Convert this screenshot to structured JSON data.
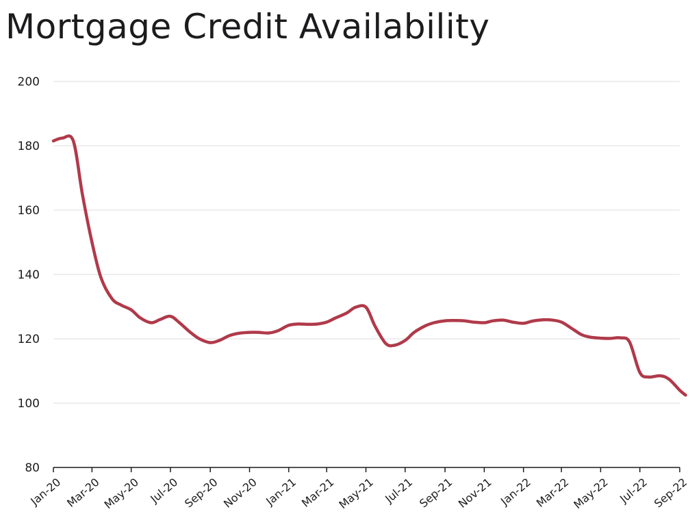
{
  "chart_data": {
    "type": "line",
    "title": "Mortgage Credit Availability",
    "xlabel": "",
    "ylabel": "",
    "ylim": [
      80,
      200
    ],
    "yticks": [
      80,
      100,
      120,
      140,
      160,
      180,
      200
    ],
    "grid": true,
    "legend": "none",
    "line_color": "#b03a4a",
    "x_tick_labels": [
      "Jan-20",
      "Mar-20",
      "May-20",
      "Jul-20",
      "Sep-20",
      "Nov-20",
      "Jan-21",
      "Mar-21",
      "May-21",
      "Jul-21",
      "Sep-21",
      "Nov-21",
      "Jan-22",
      "Mar-22",
      "May-22",
      "Jul-22",
      "Sep-22"
    ],
    "series": [
      {
        "values": [
          [
            "2020-01",
            181.5
          ],
          [
            "2020-01-15",
            182.4
          ],
          [
            "2020-02-01",
            181.5
          ],
          [
            "2020-02-15",
            165
          ],
          [
            "2020-03-01",
            150
          ],
          [
            "2020-03-15",
            139
          ],
          [
            "2020-04-01",
            132.5
          ],
          [
            "2020-04-15",
            130.5
          ],
          [
            "2020-05-01",
            129
          ],
          [
            "2020-05-15",
            126.5
          ],
          [
            "2020-06-01",
            125
          ],
          [
            "2020-06-15",
            126
          ],
          [
            "2020-07-01",
            127
          ],
          [
            "2020-07-15",
            125
          ],
          [
            "2020-08-01",
            122
          ],
          [
            "2020-08-15",
            120
          ],
          [
            "2020-09-01",
            118.8
          ],
          [
            "2020-09-15",
            119.5
          ],
          [
            "2020-10-01",
            121
          ],
          [
            "2020-10-15",
            121.7
          ],
          [
            "2020-11-01",
            122
          ],
          [
            "2020-11-15",
            122
          ],
          [
            "2020-12-01",
            121.8
          ],
          [
            "2020-12-15",
            122.5
          ],
          [
            "2021-01-01",
            124.2
          ],
          [
            "2021-01-15",
            124.6
          ],
          [
            "2021-02-01",
            124.5
          ],
          [
            "2021-02-15",
            124.6
          ],
          [
            "2021-03-01",
            125.2
          ],
          [
            "2021-03-15",
            126.5
          ],
          [
            "2021-04-01",
            128
          ],
          [
            "2021-04-15",
            129.8
          ],
          [
            "2021-05-01",
            129.8
          ],
          [
            "2021-05-15",
            124
          ],
          [
            "2021-06-01",
            118.5
          ],
          [
            "2021-06-15",
            118
          ],
          [
            "2021-07-01",
            119.5
          ],
          [
            "2021-07-15",
            122
          ],
          [
            "2021-08-01",
            124
          ],
          [
            "2021-08-15",
            125
          ],
          [
            "2021-09-01",
            125.6
          ],
          [
            "2021-09-15",
            125.7
          ],
          [
            "2021-10-01",
            125.6
          ],
          [
            "2021-10-15",
            125.2
          ],
          [
            "2021-11-01",
            125
          ],
          [
            "2021-11-15",
            125.6
          ],
          [
            "2021-12-01",
            125.8
          ],
          [
            "2021-12-15",
            125.2
          ],
          [
            "2022-01-01",
            124.8
          ],
          [
            "2022-01-15",
            125.5
          ],
          [
            "2022-02-01",
            125.9
          ],
          [
            "2022-02-15",
            125.8
          ],
          [
            "2022-03-01",
            125.2
          ],
          [
            "2022-03-15",
            123.5
          ],
          [
            "2022-04-01",
            121.3
          ],
          [
            "2022-04-15",
            120.5
          ],
          [
            "2022-05-01",
            120.2
          ],
          [
            "2022-05-15",
            120.1
          ],
          [
            "2022-06-01",
            120.3
          ],
          [
            "2022-06-15",
            119
          ],
          [
            "2022-07-01",
            109.5
          ],
          [
            "2022-07-15",
            108.1
          ],
          [
            "2022-08-01",
            108.5
          ],
          [
            "2022-08-15",
            107.5
          ],
          [
            "2022-09-01",
            104
          ],
          [
            "2022-09-10",
            102.5
          ]
        ]
      }
    ]
  }
}
